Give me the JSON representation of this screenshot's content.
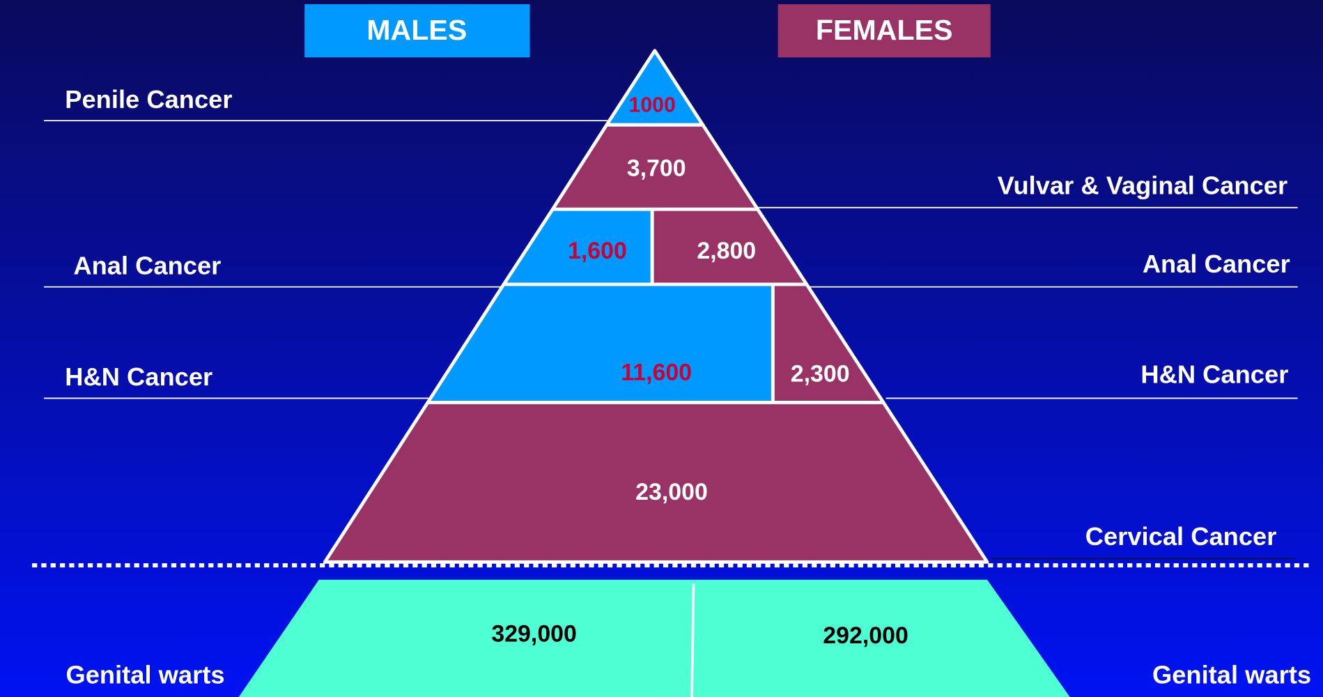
{
  "headers": {
    "males": "MALES",
    "females": "FEMALES"
  },
  "left_labels": [
    "Penile Cancer",
    "Anal Cancer",
    "H&N Cancer",
    "Genital warts"
  ],
  "right_labels": [
    "Vulvar & Vaginal Cancer",
    "Anal Cancer",
    "H&N Cancer",
    "Cervical Cancer",
    "Genital warts"
  ],
  "segments": [
    "1000",
    "3,700",
    "1,600",
    "2,800",
    "11,600",
    "2,300",
    "23,000",
    "329,000",
    "292,000"
  ]
}
